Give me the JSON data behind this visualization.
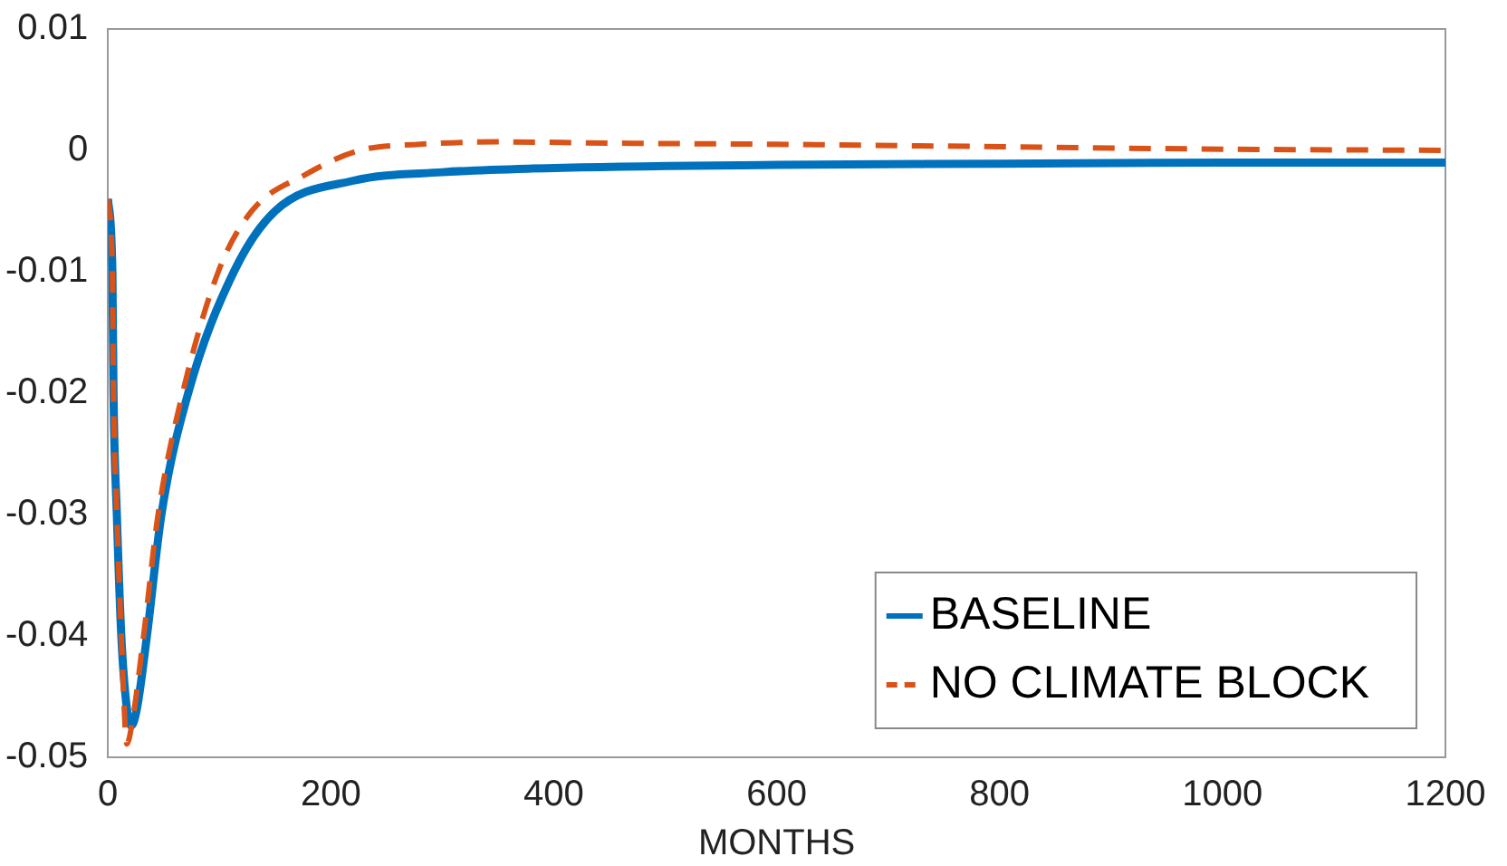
{
  "chart_data": {
    "type": "line",
    "xlabel": "MONTHS",
    "xlim": [
      0,
      1200
    ],
    "xticks": [
      0,
      200,
      400,
      600,
      800,
      1000,
      1200
    ],
    "ylim": [
      -0.05,
      0.01
    ],
    "yticks": [
      -0.05,
      -0.04,
      -0.03,
      -0.02,
      -0.01,
      0,
      0.01
    ],
    "grid": false,
    "legend": "bottom right",
    "series": [
      {
        "name": "BASELINE",
        "color": "#0072bd",
        "line_style": "solid",
        "x": [
          0,
          4,
          5,
          8,
          12,
          17,
          21,
          26,
          35,
          48,
          72,
          113,
          150,
          220,
          300,
          380,
          600,
          800,
          1000,
          1200
        ],
        "values": [
          -0.004,
          -0.01,
          -0.02,
          -0.03,
          -0.04,
          -0.046,
          -0.0474,
          -0.046,
          -0.04,
          -0.03,
          -0.02,
          -0.01,
          -0.005,
          -0.0025,
          -0.0018,
          -0.0015,
          -0.0012,
          -0.0011,
          -0.001,
          -0.001
        ]
      },
      {
        "name": "NO CLIMATE BLOCK",
        "color": "#d95319",
        "line_style": "dashed",
        "x": [
          0,
          4,
          5,
          8,
          12,
          17,
          22,
          32,
          45,
          67,
          99,
          129,
          177,
          226,
          280,
          350,
          450,
          600,
          800,
          1000,
          1200
        ],
        "values": [
          -0.004,
          -0.01,
          -0.02,
          -0.03,
          -0.04,
          -0.0489,
          -0.047,
          -0.04,
          -0.03,
          -0.02,
          -0.01,
          -0.005,
          -0.002,
          0,
          0.0005,
          0.0007,
          0.0006,
          0.0005,
          0.0003,
          0.0001,
          0
        ]
      }
    ]
  }
}
